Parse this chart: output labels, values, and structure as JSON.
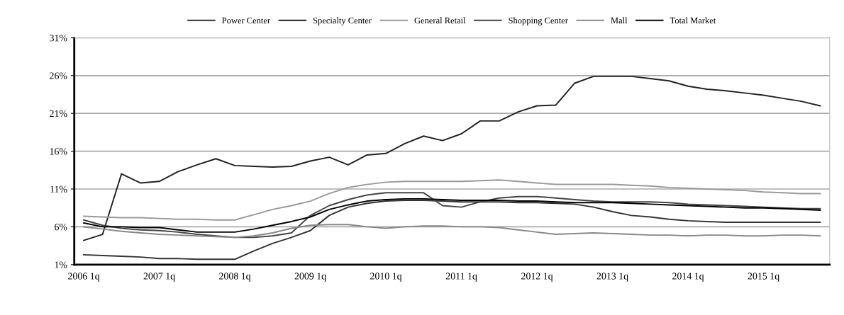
{
  "chart_data": {
    "type": "line",
    "categories": [
      "2006 1q",
      null,
      null,
      null,
      "2007 1q",
      null,
      null,
      null,
      "2008 1q",
      null,
      null,
      null,
      "2009 1q",
      null,
      null,
      null,
      "2010 1q",
      null,
      null,
      null,
      "2011 1q",
      null,
      null,
      null,
      "2012 1q",
      null,
      null,
      null,
      "2013 1q",
      null,
      null,
      null,
      "2014 1q",
      null,
      null,
      null,
      "2015 1q",
      null,
      null,
      null
    ],
    "series": [
      {
        "name": "Power Center",
        "color": "#333333",
        "values": [
          2.3,
          2.2,
          2.1,
          2.0,
          1.8,
          1.8,
          1.7,
          1.7,
          1.7,
          2.8,
          3.8,
          4.6,
          5.5,
          7.5,
          8.6,
          9.1,
          9.4,
          9.5,
          9.5,
          9.4,
          9.3,
          9.3,
          9.3,
          9.2,
          9.2,
          9.1,
          9.0,
          8.6,
          8.0,
          7.5,
          7.3,
          7.0,
          6.8,
          6.7,
          6.6,
          6.6,
          6.6,
          6.6,
          6.6,
          6.6
        ]
      },
      {
        "name": "Specialty Center",
        "color": "#222222",
        "values": [
          4.2,
          5.0,
          13.0,
          11.8,
          12.0,
          13.3,
          14.2,
          15.0,
          14.1,
          14.0,
          13.9,
          14.0,
          14.7,
          15.2,
          14.2,
          15.5,
          15.7,
          17.0,
          18.0,
          17.4,
          18.3,
          20.0,
          20.0,
          21.2,
          22.0,
          22.1,
          25.0,
          25.9,
          25.9,
          25.9,
          25.6,
          25.3,
          24.6,
          24.2,
          24.0,
          23.7,
          23.4,
          23.0,
          22.6,
          22.0
        ]
      },
      {
        "name": "General Retail",
        "color": "#999999",
        "values": [
          7.4,
          7.3,
          7.2,
          7.2,
          7.1,
          7.0,
          7.0,
          6.9,
          6.9,
          7.6,
          8.3,
          8.8,
          9.4,
          10.4,
          11.2,
          11.6,
          11.9,
          12.0,
          12.0,
          12.0,
          12.0,
          12.1,
          12.2,
          12.0,
          11.8,
          11.6,
          11.6,
          11.6,
          11.6,
          11.5,
          11.4,
          11.2,
          11.1,
          11.0,
          10.9,
          10.8,
          10.6,
          10.5,
          10.4,
          10.4
        ]
      },
      {
        "name": "Shopping Center",
        "color": "#444444",
        "values": [
          6.9,
          6.2,
          5.8,
          5.6,
          5.5,
          5.3,
          5.0,
          4.8,
          4.6,
          4.6,
          4.8,
          5.2,
          7.5,
          8.8,
          9.6,
          10.2,
          10.5,
          10.5,
          10.5,
          8.8,
          8.6,
          9.3,
          9.8,
          10.0,
          10.0,
          9.8,
          9.6,
          9.4,
          9.3,
          9.3,
          9.3,
          9.2,
          9.0,
          8.9,
          8.8,
          8.7,
          8.6,
          8.5,
          8.4,
          8.4
        ]
      },
      {
        "name": "Mall",
        "color": "#888888",
        "values": [
          6.0,
          5.7,
          5.4,
          5.2,
          5.0,
          4.9,
          4.8,
          4.7,
          4.6,
          4.8,
          5.2,
          5.8,
          6.2,
          6.3,
          6.3,
          6.0,
          5.8,
          6.0,
          6.1,
          6.1,
          6.0,
          6.0,
          5.9,
          5.6,
          5.3,
          5.0,
          5.1,
          5.2,
          5.1,
          5.0,
          4.9,
          4.9,
          4.8,
          4.9,
          4.9,
          4.8,
          4.8,
          4.9,
          4.9,
          4.8
        ]
      },
      {
        "name": "Total Market",
        "color": "#000000",
        "values": [
          6.5,
          6.0,
          6.0,
          5.9,
          5.9,
          5.6,
          5.3,
          5.3,
          5.3,
          5.7,
          6.2,
          6.7,
          7.3,
          8.3,
          8.9,
          9.4,
          9.6,
          9.7,
          9.7,
          9.6,
          9.5,
          9.5,
          9.5,
          9.4,
          9.4,
          9.3,
          9.2,
          9.2,
          9.2,
          9.1,
          9.0,
          8.9,
          8.8,
          8.7,
          8.6,
          8.5,
          8.5,
          8.4,
          8.3,
          8.2
        ]
      }
    ],
    "ylim": [
      1,
      31
    ],
    "yticks": [
      {
        "value": 1,
        "label": "1%"
      },
      {
        "value": 6,
        "label": "6%"
      },
      {
        "value": 11,
        "label": "11%"
      },
      {
        "value": 16,
        "label": "16%"
      },
      {
        "value": 21,
        "label": "21%"
      },
      {
        "value": 26,
        "label": "26%"
      },
      {
        "value": 31,
        "label": "31%"
      }
    ],
    "grid": "y",
    "legend": "top",
    "marker": "none",
    "line_style": "solid"
  }
}
